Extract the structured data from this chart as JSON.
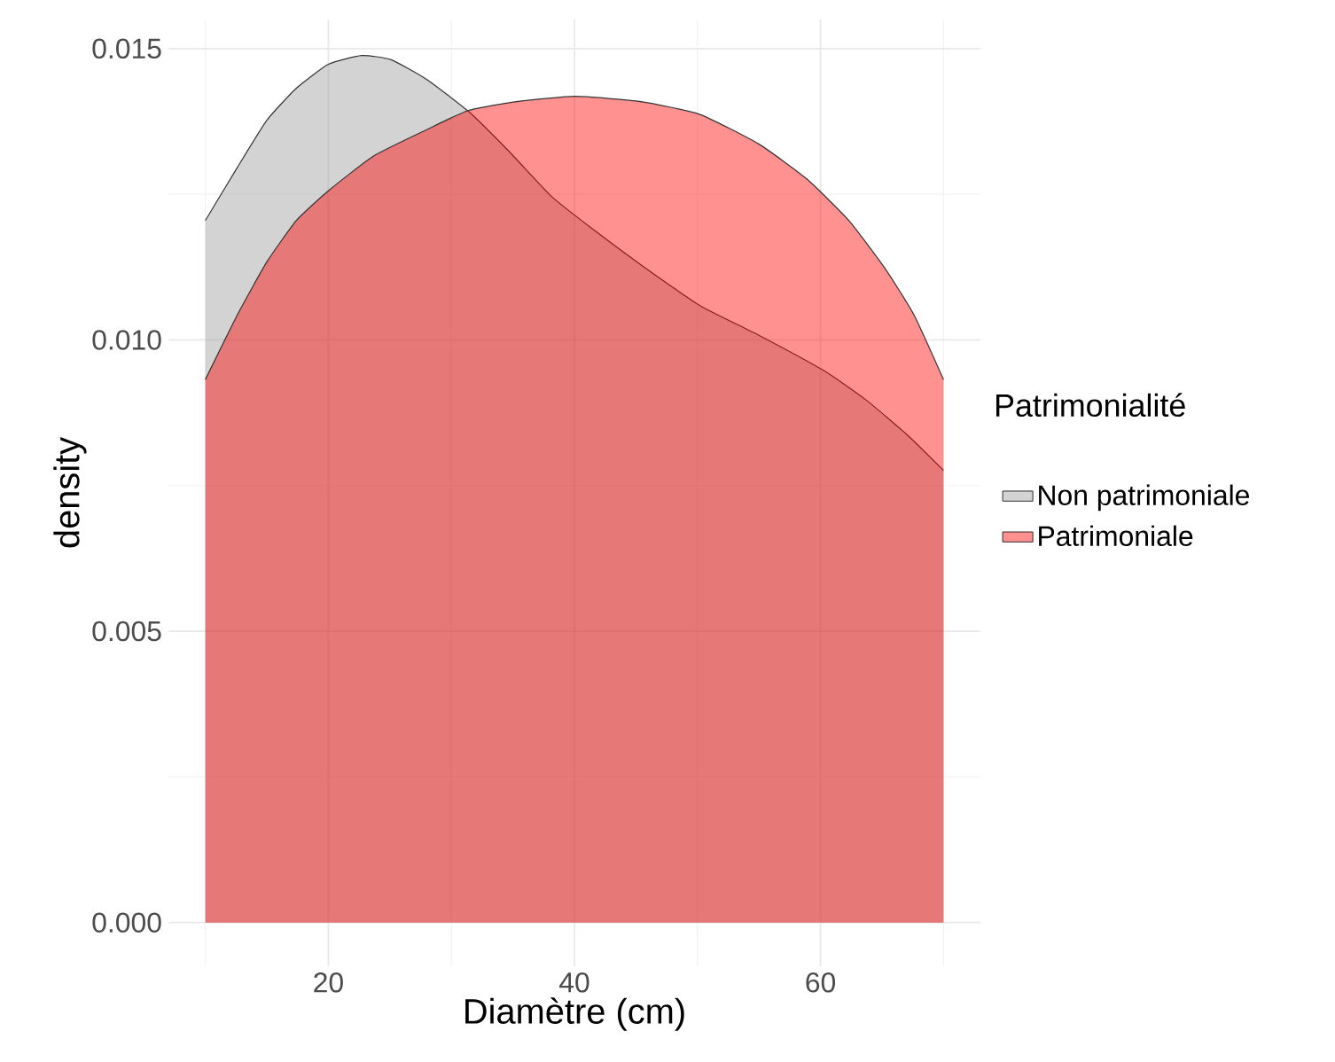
{
  "chart_data": {
    "type": "area",
    "xlabel": "Diamètre (cm)",
    "ylabel": "density",
    "legend_title": "Patrimonialité",
    "xlim": [
      7,
      73
    ],
    "xticks": [
      20,
      40,
      60
    ],
    "ylim": [
      -0.00075,
      0.0155
    ],
    "yticks": [
      {
        "value": 0,
        "label": "0.000"
      },
      {
        "value": 0.005,
        "label": "0.005"
      },
      {
        "value": 0.01,
        "label": "0.010"
      },
      {
        "value": 0.015,
        "label": "0.015"
      }
    ],
    "grid": true,
    "legend": "right",
    "series": [
      {
        "name": "Non patrimoniale",
        "color": "#999999",
        "x": [
          10,
          12.6,
          15,
          17.4,
          20,
          22.7,
          25.1,
          28,
          31.4,
          34.8,
          38.2,
          41.5,
          45.4,
          50.2,
          55,
          60.3,
          63.7,
          67.1,
          70
        ],
        "values": [
          0.01205,
          0.01296,
          0.01377,
          0.01432,
          0.01473,
          0.01488,
          0.01481,
          0.01447,
          0.01392,
          0.01321,
          0.01245,
          0.0119,
          0.01129,
          0.01059,
          0.01008,
          0.00947,
          0.00897,
          0.00836,
          0.00776
        ]
      },
      {
        "name": "Patrimoniale",
        "color": "#ff0000",
        "x": [
          10,
          12.6,
          15,
          17.4,
          20,
          23.7,
          28,
          31.4,
          35.3,
          40.1,
          45.4,
          50.2,
          55,
          58.9,
          62.3,
          65.2,
          67.6,
          70
        ],
        "values": [
          0.00932,
          0.01043,
          0.01134,
          0.01205,
          0.01256,
          0.01316,
          0.01361,
          0.01394,
          0.01409,
          0.01418,
          0.01409,
          0.01387,
          0.01336,
          0.01276,
          0.01205,
          0.01124,
          0.01043,
          0.00932
        ]
      }
    ]
  }
}
